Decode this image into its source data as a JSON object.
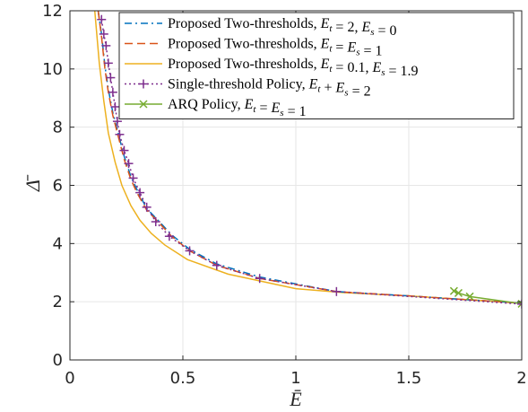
{
  "chart_data": {
    "type": "line",
    "xlabel": "Ē",
    "ylabel": "Δ̄",
    "xlim": [
      0,
      2
    ],
    "ylim": [
      0,
      12
    ],
    "xticks": [
      0,
      0.5,
      1,
      1.5,
      2
    ],
    "xtick_labels": [
      "0",
      "0.5",
      "1",
      "1.5",
      "2"
    ],
    "yticks": [
      0,
      2,
      4,
      6,
      8,
      10,
      12
    ],
    "ytick_labels": [
      "0",
      "2",
      "4",
      "6",
      "8",
      "10",
      "12"
    ],
    "grid": true,
    "legend_position": "top-right",
    "series": [
      {
        "name": "Proposed Two-thresholds, E_t = 2, E_s = 0",
        "legend_main": "Proposed Two-thresholds, ",
        "legend_math": "E_t = 2, E_s = 0",
        "color": "#0072BD",
        "style": "dashdot",
        "marker": "none",
        "x": [
          0.125,
          0.14,
          0.155,
          0.17,
          0.19,
          0.21,
          0.24,
          0.27,
          0.3,
          0.34,
          0.39,
          0.45,
          0.53,
          0.65,
          0.84,
          1.18,
          1.5,
          1.8,
          2.0
        ],
        "y": [
          12.0,
          11.2,
          10.1,
          9.3,
          8.5,
          7.9,
          7.0,
          6.3,
          5.8,
          5.2,
          4.8,
          4.3,
          3.8,
          3.3,
          2.85,
          2.35,
          2.2,
          2.05,
          1.95
        ]
      },
      {
        "name": "Proposed Two-thresholds, E_t = E_s = 1",
        "legend_main": "Proposed Two-thresholds, ",
        "legend_math": "E_t = E_s = 1",
        "color": "#D95319",
        "style": "dashed",
        "marker": "none",
        "x": [
          0.125,
          0.14,
          0.155,
          0.17,
          0.19,
          0.21,
          0.24,
          0.27,
          0.3,
          0.34,
          0.39,
          0.45,
          0.53,
          0.65,
          0.84,
          1.18,
          1.5,
          1.8,
          2.0
        ],
        "y": [
          12.0,
          11.1,
          10.0,
          9.2,
          8.4,
          7.8,
          6.9,
          6.2,
          5.7,
          5.15,
          4.75,
          4.25,
          3.75,
          3.25,
          2.8,
          2.35,
          2.2,
          2.05,
          1.95
        ]
      },
      {
        "name": "Proposed Two-thresholds, E_t = 0.1, E_s = 1.9",
        "legend_main": "Proposed Two-thresholds, ",
        "legend_math": "E_t = 0.1, E_s = 1.9",
        "color": "#EDB120",
        "style": "solid",
        "marker": "none",
        "x": [
          0.11,
          0.13,
          0.15,
          0.17,
          0.2,
          0.23,
          0.27,
          0.31,
          0.36,
          0.42,
          0.52,
          0.7,
          1.0,
          1.2,
          1.5,
          1.8,
          2.0
        ],
        "y": [
          12.0,
          10.2,
          8.9,
          7.8,
          6.8,
          6.0,
          5.3,
          4.8,
          4.35,
          3.95,
          3.45,
          2.95,
          2.45,
          2.32,
          2.2,
          2.05,
          1.95
        ]
      },
      {
        "name": "Single-threshold Policy, E_t + E_s = 2",
        "legend_main": "Single-threshold Policy, ",
        "legend_math": "E_t + E_s = 2",
        "color": "#7E2F8E",
        "style": "dotted",
        "marker": "plus",
        "x": [
          0.14,
          0.15,
          0.16,
          0.17,
          0.18,
          0.19,
          0.2,
          0.21,
          0.22,
          0.24,
          0.26,
          0.28,
          0.31,
          0.34,
          0.38,
          0.44,
          0.53,
          0.65,
          0.84,
          1.18,
          2.0
        ],
        "y": [
          11.7,
          11.2,
          10.8,
          10.2,
          9.7,
          9.2,
          8.7,
          8.2,
          7.75,
          7.2,
          6.75,
          6.25,
          5.75,
          5.25,
          4.75,
          4.25,
          3.75,
          3.25,
          2.8,
          2.35,
          1.92
        ]
      },
      {
        "name": "ARQ Policy, E_t = E_s = 1",
        "legend_main": "ARQ Policy, ",
        "legend_math": "E_t = E_s = 1",
        "color": "#77AC30",
        "style": "solid",
        "marker": "x",
        "x": [
          1.7,
          1.72,
          1.77,
          2.0
        ],
        "y": [
          2.37,
          2.3,
          2.18,
          1.93
        ]
      }
    ]
  }
}
